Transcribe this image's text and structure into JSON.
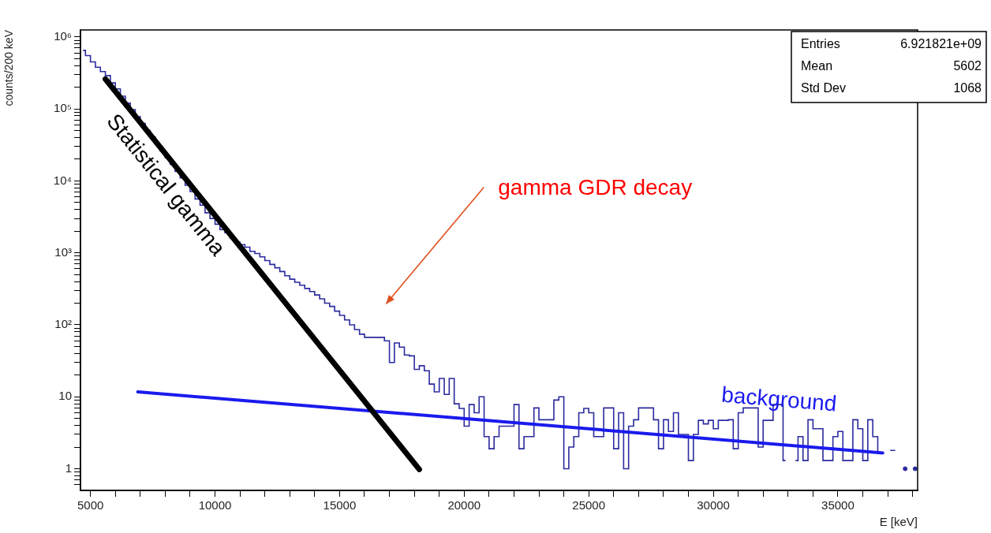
{
  "chart_data": {
    "type": "step",
    "xlabel": "E [keV]",
    "ylabel": "counts/200 keV",
    "log": "y",
    "color": "#2b2b9e",
    "x": [
      4700,
      4900,
      5100,
      5300,
      5500,
      5700,
      5900,
      6100,
      6300,
      6500,
      6700,
      6900,
      7100,
      7300,
      7500,
      7700,
      7900,
      8100,
      8300,
      8500,
      8700,
      8900,
      9100,
      9300,
      9500,
      9700,
      9900,
      10100,
      10300,
      10500,
      10700,
      10900,
      11100,
      11300,
      11500,
      11700,
      11900,
      12100,
      12300,
      12500,
      12700,
      12900,
      13100,
      13300,
      13500,
      13700,
      13900,
      14100,
      14300,
      14500,
      14700,
      14900,
      15100,
      15300,
      15500,
      15700,
      15900,
      16100,
      16300,
      16500,
      16700,
      16900,
      17100,
      17300,
      17500,
      17700,
      17900,
      18100,
      18300,
      18500,
      18700,
      18900,
      19100,
      19300,
      19500,
      19700,
      19900,
      20100,
      20300,
      20500,
      20700,
      20900,
      21100,
      21300,
      21500,
      21700,
      21900,
      22100,
      22300,
      22500,
      22700,
      22900,
      23100,
      23300,
      23500,
      23700,
      23900,
      24100,
      24300,
      24500,
      24700,
      24900,
      25100,
      25300,
      25500,
      25700,
      25900,
      26100,
      26300,
      26500,
      26700,
      26900,
      27100,
      27300,
      27500,
      27700,
      27900,
      28100,
      28300,
      28500,
      28700,
      28900,
      29100,
      29300,
      29500,
      29700,
      29900,
      30100,
      30300,
      30500,
      30700,
      30900,
      31100,
      31300,
      31500,
      31700,
      31900,
      32100,
      32300,
      32500,
      32700,
      32900,
      33100,
      33300,
      33500,
      33700,
      33900,
      34100,
      34300,
      34500,
      34700,
      34900,
      35100,
      35300,
      35500,
      35700,
      35900,
      36100,
      36300,
      36500,
      36700,
      36900,
      37100,
      37300,
      37500,
      37700,
      37900,
      38100
    ],
    "values": [
      650000,
      550000,
      450000,
      380000,
      330000,
      290000,
      230000,
      190000,
      150000,
      120000,
      98000,
      78000,
      63000,
      50000,
      41000,
      32000,
      26000,
      21000,
      17000,
      13500,
      11000,
      8700,
      7100,
      5600,
      4600,
      3600,
      3000,
      2500,
      2100,
      1900,
      1600,
      1400,
      1300,
      1200,
      1050,
      980,
      880,
      780,
      690,
      620,
      550,
      480,
      430,
      390,
      355,
      320,
      290,
      260,
      230,
      200,
      180,
      155,
      135,
      117,
      100,
      86,
      74,
      67,
      67,
      67,
      67,
      60,
      30,
      56,
      49,
      38,
      37,
      24,
      27,
      23,
      15,
      11.7,
      18,
      10.8,
      18,
      8,
      6.9,
      3.9,
      7.8,
      6,
      10,
      2.8,
      1.9,
      2.8,
      3.9,
      3.9,
      3.9,
      7.8,
      1.9,
      2.8,
      2.8,
      7,
      4.8,
      4.8,
      4.8,
      9,
      10,
      1,
      2,
      2.8,
      6,
      6.9,
      6,
      2.8,
      2.8,
      7,
      7,
      1.9,
      6,
      1,
      3.9,
      4.8,
      7,
      7,
      7,
      4.8,
      1.9,
      4.8,
      3.3,
      6,
      3,
      3,
      1.3,
      3,
      4.7,
      4.2,
      4.7,
      3.6,
      4.7,
      4.7,
      4.8,
      1.9,
      6,
      7,
      7,
      7,
      2,
      4.7,
      4.7,
      7.8,
      7.8,
      1.3,
      null,
      1.3,
      2.8,
      1.3,
      4.8,
      3.6,
      3.6,
      1.3,
      1.3,
      2.8,
      3.3,
      1.3,
      1.3,
      4.8,
      3.6,
      1.3,
      4.8,
      2.8,
      1.7,
      null,
      1.8,
      1.8,
      null,
      1,
      null,
      1
    ],
    "series": [
      {
        "name": "Statistical gamma",
        "type": "line",
        "color": "#000000",
        "x": [
          5600,
          18200
        ],
        "values": [
          260000,
          0.98
        ]
      },
      {
        "name": "background",
        "type": "line",
        "color": "#1a1aee",
        "x": [
          6900,
          36800
        ],
        "values": [
          11.7,
          1.66
        ]
      }
    ],
    "xlim": [
      4600,
      38200
    ],
    "ylim": [
      0.5,
      1250000
    ],
    "xticks": [
      5000,
      {
        "value": 6000,
        "label": null
      },
      {
        "value": 7000,
        "label": null
      },
      {
        "value": 8000,
        "label": null
      },
      {
        "value": 9000,
        "label": null
      },
      10000,
      {
        "value": 11000,
        "label": null
      },
      {
        "value": 12000,
        "label": null
      },
      {
        "value": 13000,
        "label": null
      },
      {
        "value": 14000,
        "label": null
      },
      15000,
      {
        "value": 16000,
        "label": null
      },
      {
        "value": 17000,
        "label": null
      },
      {
        "value": 18000,
        "label": null
      },
      {
        "value": 19000,
        "label": null
      },
      20000,
      {
        "value": 21000,
        "label": null
      },
      {
        "value": 22000,
        "label": null
      },
      {
        "value": 23000,
        "label": null
      },
      {
        "value": 24000,
        "label": null
      },
      25000,
      {
        "value": 26000,
        "label": null
      },
      {
        "value": 27000,
        "label": null
      },
      {
        "value": 28000,
        "label": null
      },
      {
        "value": 29000,
        "label": null
      },
      30000,
      {
        "value": 31000,
        "label": null
      },
      {
        "value": 32000,
        "label": null
      },
      {
        "value": 33000,
        "label": null
      },
      {
        "value": 34000,
        "label": null
      },
      35000,
      {
        "value": 36000,
        "label": null
      },
      {
        "value": 37000,
        "label": null
      },
      {
        "value": 38000,
        "label": null
      }
    ],
    "yticks": [
      {
        "value": 0.6,
        "label": null
      },
      {
        "value": 0.7,
        "label": null
      },
      {
        "value": 0.8,
        "label": null
      },
      {
        "value": 0.9,
        "label": null
      },
      1,
      {
        "value": 2,
        "label": null
      },
      {
        "value": 3,
        "label": null
      },
      {
        "value": 4,
        "label": null
      },
      {
        "value": 5,
        "label": null
      },
      {
        "value": 6,
        "label": null
      },
      {
        "value": 7,
        "label": null
      },
      {
        "value": 8,
        "label": null
      },
      {
        "value": 9,
        "label": null
      },
      10,
      {
        "value": 20,
        "label": null
      },
      {
        "value": 30,
        "label": null
      },
      {
        "value": 40,
        "label": null
      },
      {
        "value": 50,
        "label": null
      },
      {
        "value": 60,
        "label": null
      },
      {
        "value": 70,
        "label": null
      },
      {
        "value": 80,
        "label": null
      },
      {
        "value": 90,
        "label": null
      },
      {
        "value": 100,
        "label": "10²"
      },
      {
        "value": 200,
        "label": null
      },
      {
        "value": 300,
        "label": null
      },
      {
        "value": 400,
        "label": null
      },
      {
        "value": 500,
        "label": null
      },
      {
        "value": 600,
        "label": null
      },
      {
        "value": 700,
        "label": null
      },
      {
        "value": 800,
        "label": null
      },
      {
        "value": 900,
        "label": null
      },
      {
        "value": 1000,
        "label": "10³"
      },
      {
        "value": 2000,
        "label": null
      },
      {
        "value": 3000,
        "label": null
      },
      {
        "value": 4000,
        "label": null
      },
      {
        "value": 5000,
        "label": null
      },
      {
        "value": 6000,
        "label": null
      },
      {
        "value": 7000,
        "label": null
      },
      {
        "value": 8000,
        "label": null
      },
      {
        "value": 9000,
        "label": null
      },
      {
        "value": 10000,
        "label": "10⁴"
      },
      {
        "value": 20000,
        "label": null
      },
      {
        "value": 30000,
        "label": null
      },
      {
        "value": 40000,
        "label": null
      },
      {
        "value": 50000,
        "label": null
      },
      {
        "value": 60000,
        "label": null
      },
      {
        "value": 70000,
        "label": null
      },
      {
        "value": 80000,
        "label": null
      },
      {
        "value": 90000,
        "label": null
      },
      {
        "value": 100000,
        "label": "10⁵"
      },
      {
        "value": 200000,
        "label": null
      },
      {
        "value": 300000,
        "label": null
      },
      {
        "value": 400000,
        "label": null
      },
      {
        "value": 500000,
        "label": null
      },
      {
        "value": 600000,
        "label": null
      },
      {
        "value": 700000,
        "label": null
      },
      {
        "value": 800000,
        "label": null
      },
      {
        "value": 900000,
        "label": null
      },
      {
        "value": 1000000,
        "label": "10⁶"
      }
    ],
    "annotations": [
      "gamma GDR decay",
      "Entries",
      "6.921821e+09",
      "Mean",
      "5602",
      "Std Dev",
      "1068"
    ]
  }
}
